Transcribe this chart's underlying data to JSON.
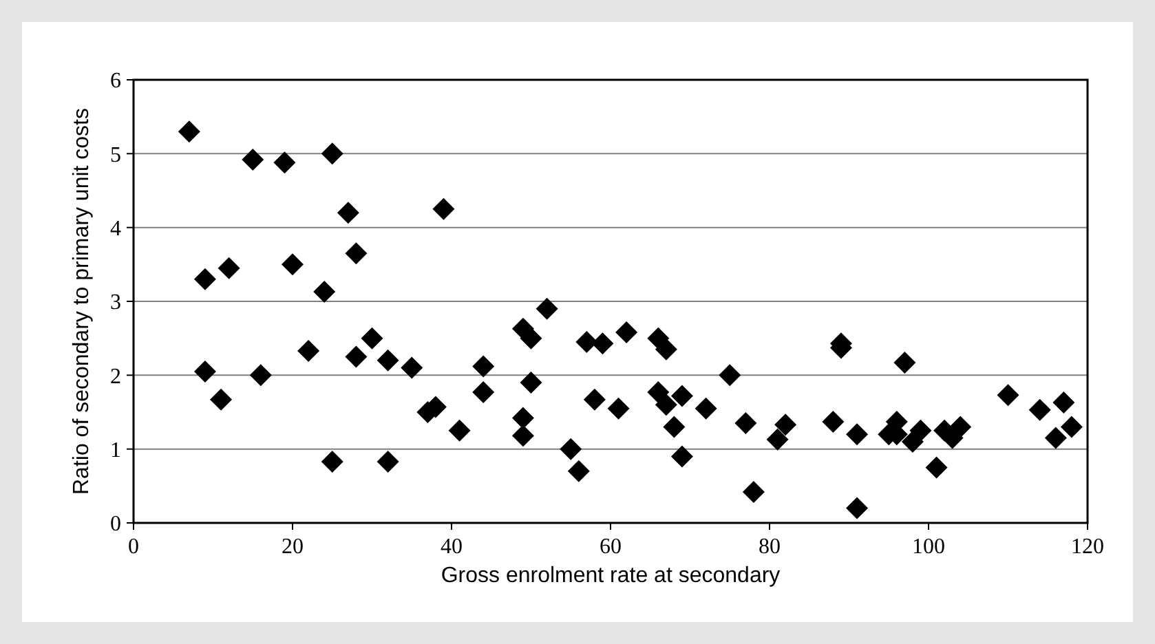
{
  "chart_data": {
    "type": "scatter",
    "xlabel": "Gross enrolment rate at secondary",
    "ylabel": "Ratio of secondary to primary unit costs",
    "xlim": [
      0,
      120
    ],
    "xticks": [
      0,
      20,
      40,
      60,
      80,
      100,
      120
    ],
    "ylim": [
      0,
      6
    ],
    "yticks": [
      0,
      1,
      2,
      3,
      4,
      5,
      6
    ],
    "grid": "y",
    "marker": "diamond",
    "series": [
      {
        "color": "#000000",
        "x": [
          7,
          9,
          9,
          11,
          12,
          15,
          16,
          19,
          20,
          22,
          24,
          25,
          25,
          27,
          28,
          28,
          30,
          32,
          32,
          35,
          37,
          38,
          39,
          41,
          44,
          44,
          49,
          49,
          49,
          50,
          50,
          52,
          55,
          56,
          57,
          58,
          59,
          61,
          62,
          66,
          66,
          67,
          67,
          68,
          69,
          69,
          72,
          75,
          77,
          78,
          81,
          82,
          88,
          89,
          89,
          91,
          91,
          95,
          96,
          96,
          97,
          98,
          99,
          101,
          102,
          103,
          104,
          110,
          114,
          116,
          117,
          118
        ],
        "values": [
          5.3,
          3.3,
          2.05,
          1.67,
          3.45,
          4.92,
          2.0,
          4.88,
          3.5,
          2.33,
          3.13,
          5.0,
          0.83,
          4.2,
          3.65,
          2.25,
          2.5,
          2.2,
          0.83,
          2.1,
          1.5,
          1.57,
          4.25,
          1.25,
          2.12,
          1.77,
          2.63,
          1.42,
          1.18,
          2.5,
          1.9,
          2.9,
          1.0,
          0.7,
          2.45,
          1.67,
          2.43,
          1.55,
          2.58,
          2.5,
          1.77,
          2.35,
          1.6,
          1.3,
          1.72,
          0.9,
          1.55,
          2.0,
          1.35,
          0.42,
          1.13,
          1.33,
          1.37,
          2.43,
          2.37,
          1.2,
          0.2,
          1.2,
          1.37,
          1.2,
          2.17,
          1.1,
          1.25,
          0.75,
          1.25,
          1.15,
          1.3,
          1.73,
          1.53,
          1.15,
          1.63,
          1.3
        ]
      }
    ]
  }
}
